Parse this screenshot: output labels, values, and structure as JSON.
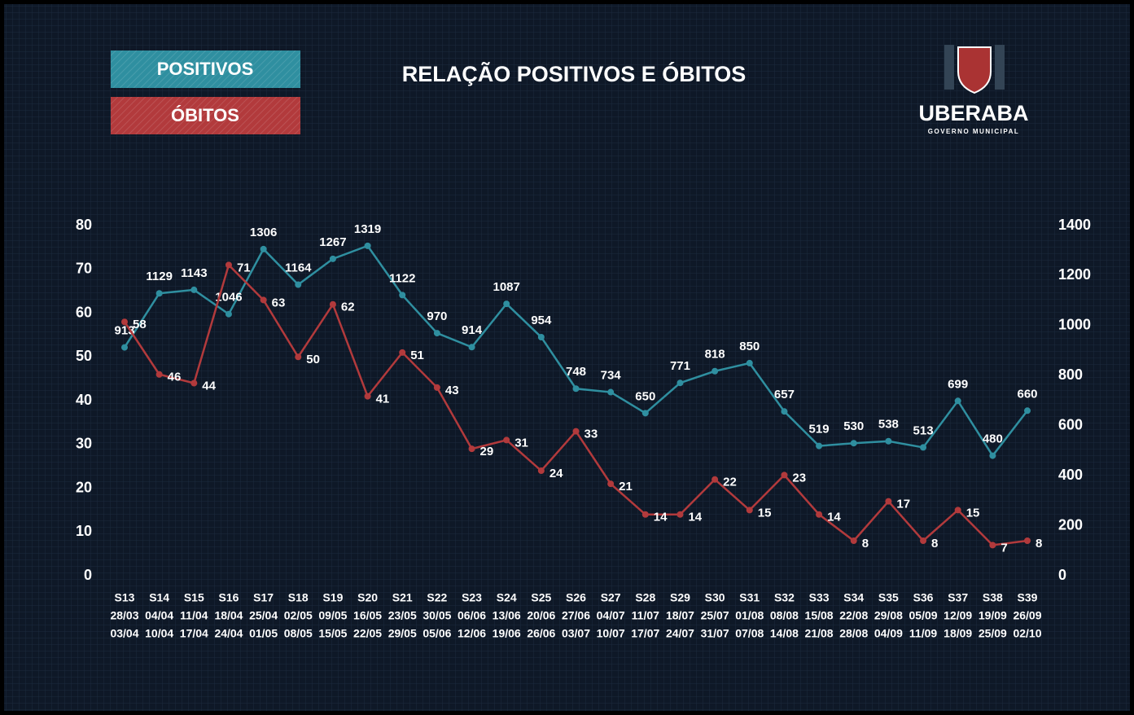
{
  "chart_data": {
    "type": "line",
    "title": "RELAÇÃO POSITIVOS E ÓBITOS",
    "logo": {
      "name": "UBERABA",
      "subtitle": "GOVERNO MUNICIPAL"
    },
    "categories": [
      [
        "S13",
        "28/03",
        "03/04"
      ],
      [
        "S14",
        "04/04",
        "10/04"
      ],
      [
        "S15",
        "11/04",
        "17/04"
      ],
      [
        "S16",
        "18/04",
        "24/04"
      ],
      [
        "S17",
        "25/04",
        "01/05"
      ],
      [
        "S18",
        "02/05",
        "08/05"
      ],
      [
        "S19",
        "09/05",
        "15/05"
      ],
      [
        "S20",
        "16/05",
        "22/05"
      ],
      [
        "S21",
        "23/05",
        "29/05"
      ],
      [
        "S22",
        "30/05",
        "05/06"
      ],
      [
        "S23",
        "06/06",
        "12/06"
      ],
      [
        "S24",
        "13/06",
        "19/06"
      ],
      [
        "S25",
        "20/06",
        "26/06"
      ],
      [
        "S26",
        "27/06",
        "03/07"
      ],
      [
        "S27",
        "04/07",
        "10/07"
      ],
      [
        "S28",
        "11/07",
        "17/07"
      ],
      [
        "S29",
        "18/07",
        "24/07"
      ],
      [
        "S30",
        "25/07",
        "31/07"
      ],
      [
        "S31",
        "01/08",
        "07/08"
      ],
      [
        "S32",
        "08/08",
        "14/08"
      ],
      [
        "S33",
        "15/08",
        "21/08"
      ],
      [
        "S34",
        "22/08",
        "28/08"
      ],
      [
        "S35",
        "29/08",
        "04/09"
      ],
      [
        "S36",
        "05/09",
        "11/09"
      ],
      [
        "S37",
        "12/09",
        "18/09"
      ],
      [
        "S38",
        "19/09",
        "25/09"
      ],
      [
        "S39",
        "26/09",
        "02/10"
      ]
    ],
    "series": [
      {
        "name": "POSITIVOS",
        "color": "#2f8fa0",
        "axis": "y2",
        "values": [
          913,
          1129,
          1143,
          1046,
          1306,
          1164,
          1267,
          1319,
          1122,
          970,
          914,
          1087,
          954,
          748,
          734,
          650,
          771,
          818,
          850,
          657,
          519,
          530,
          538,
          513,
          699,
          480,
          660
        ]
      },
      {
        "name": "ÓBITOS",
        "color": "#b23a3c",
        "values": [
          58,
          46,
          44,
          71,
          63,
          50,
          62,
          41,
          51,
          43,
          29,
          31,
          24,
          33,
          21,
          14,
          14,
          22,
          15,
          23,
          14,
          8,
          17,
          8,
          15,
          7,
          8
        ]
      }
    ],
    "ylim": [
      0,
      80
    ],
    "yticks": [
      0,
      10,
      20,
      30,
      40,
      50,
      60,
      70,
      80
    ],
    "y2lim": [
      0,
      1400
    ],
    "y2ticks": [
      0,
      200,
      400,
      600,
      800,
      1000,
      1200,
      1400
    ]
  }
}
